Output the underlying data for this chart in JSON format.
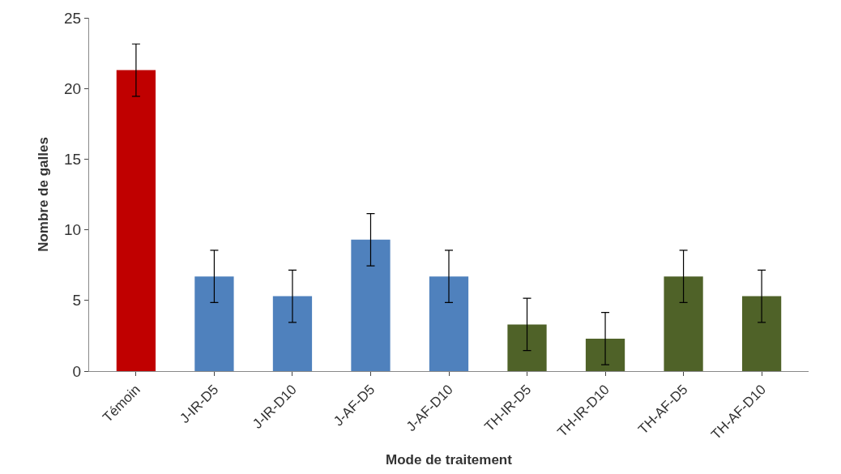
{
  "chart_data": {
    "type": "bar",
    "xlabel": "Mode de traitement",
    "ylabel": "Nombre de galles",
    "categories": [
      "Témoin",
      "J-IR-D5",
      "J-IR-D10",
      "J-AF-D5",
      "J-AF-D10",
      "TH-IR-D5",
      "TH-IR-D10",
      "TH-AF-D5",
      "TH-AF-D10"
    ],
    "values": [
      21.3,
      6.7,
      5.3,
      9.3,
      6.7,
      3.3,
      2.3,
      6.7,
      5.3
    ],
    "errors": [
      1.85,
      1.85,
      1.85,
      1.85,
      1.85,
      1.85,
      1.85,
      1.85,
      1.85
    ],
    "colors": [
      "#c00000",
      "#4f81bd",
      "#4f81bd",
      "#4f81bd",
      "#4f81bd",
      "#4f6228",
      "#4f6228",
      "#4f6228",
      "#4f6228"
    ],
    "ylim": [
      0,
      25
    ],
    "yticks": [
      0,
      5,
      10,
      15,
      20,
      25
    ]
  }
}
